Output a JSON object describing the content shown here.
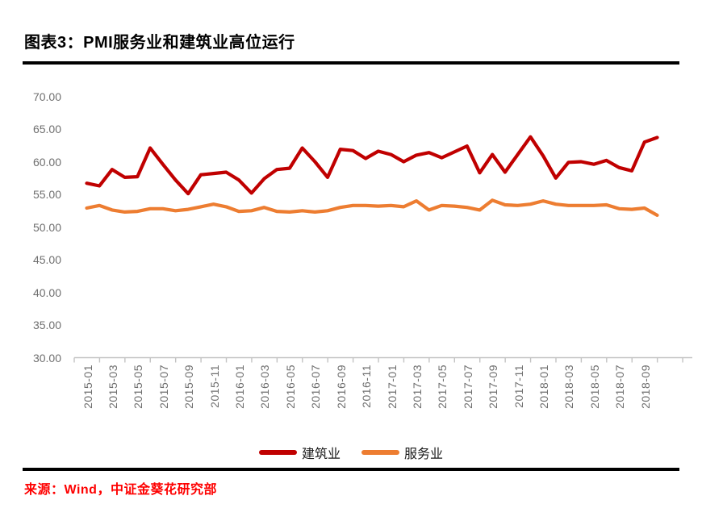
{
  "page": {
    "title": "图表3：PMI服务业和建筑业高位运行",
    "source": "来源：Wind，中证金葵花研究部"
  },
  "chart_data": {
    "type": "line",
    "title": "PMI服务业和建筑业高位运行",
    "xlabel": "",
    "ylabel": "",
    "ylim": [
      30,
      70
    ],
    "y_ticks": [
      70,
      65,
      60,
      55,
      50,
      45,
      40,
      35,
      30
    ],
    "y_tick_labels": [
      "70.00",
      "65.00",
      "60.00",
      "55.00",
      "50.00",
      "45.00",
      "40.00",
      "35.00",
      "30.00"
    ],
    "grid": false,
    "legend_position": "bottom",
    "axis_color": "#c3c3c3",
    "tick_label_color": "#6f6f6f",
    "x_label_every": 2,
    "x": [
      "2015-01",
      "2015-02",
      "2015-03",
      "2015-04",
      "2015-05",
      "2015-06",
      "2015-07",
      "2015-08",
      "2015-09",
      "2015-10",
      "2015-11",
      "2015-12",
      "2016-01",
      "2016-02",
      "2016-03",
      "2016-04",
      "2016-05",
      "2016-06",
      "2016-07",
      "2016-08",
      "2016-09",
      "2016-10",
      "2016-11",
      "2016-12",
      "2017-01",
      "2017-02",
      "2017-03",
      "2017-04",
      "2017-05",
      "2017-06",
      "2017-07",
      "2017-08",
      "2017-09",
      "2017-10",
      "2017-11",
      "2017-12",
      "2018-01",
      "2018-02",
      "2018-03",
      "2018-04",
      "2018-05",
      "2018-06",
      "2018-07",
      "2018-08",
      "2018-09",
      "2018-10"
    ],
    "series": [
      {
        "name": "建筑业",
        "color": "#c00000",
        "values": [
          56.7,
          56.3,
          58.8,
          57.6,
          57.7,
          62.1,
          59.6,
          57.2,
          55.1,
          58.0,
          58.2,
          58.4,
          57.2,
          55.2,
          57.4,
          58.8,
          59.0,
          62.1,
          60.0,
          57.6,
          61.9,
          61.7,
          60.5,
          61.6,
          61.1,
          60.0,
          61.0,
          61.4,
          60.6,
          61.5,
          62.4,
          58.3,
          61.1,
          58.4,
          61.1,
          63.8,
          60.9,
          57.5,
          59.9,
          60.0,
          59.6,
          60.2,
          59.1,
          58.6,
          63.0,
          63.7
        ]
      },
      {
        "name": "服务业",
        "color": "#ed7d31",
        "values": [
          52.9,
          53.3,
          52.6,
          52.3,
          52.4,
          52.8,
          52.8,
          52.5,
          52.7,
          53.1,
          53.5,
          53.1,
          52.4,
          52.5,
          53.0,
          52.4,
          52.3,
          52.5,
          52.3,
          52.5,
          53.0,
          53.3,
          53.3,
          53.2,
          53.3,
          53.1,
          54.0,
          52.6,
          53.3,
          53.2,
          53.0,
          52.6,
          54.1,
          53.4,
          53.3,
          53.5,
          54.0,
          53.5,
          53.3,
          53.3,
          53.3,
          53.4,
          52.8,
          52.7,
          52.9,
          51.8
        ]
      }
    ]
  }
}
